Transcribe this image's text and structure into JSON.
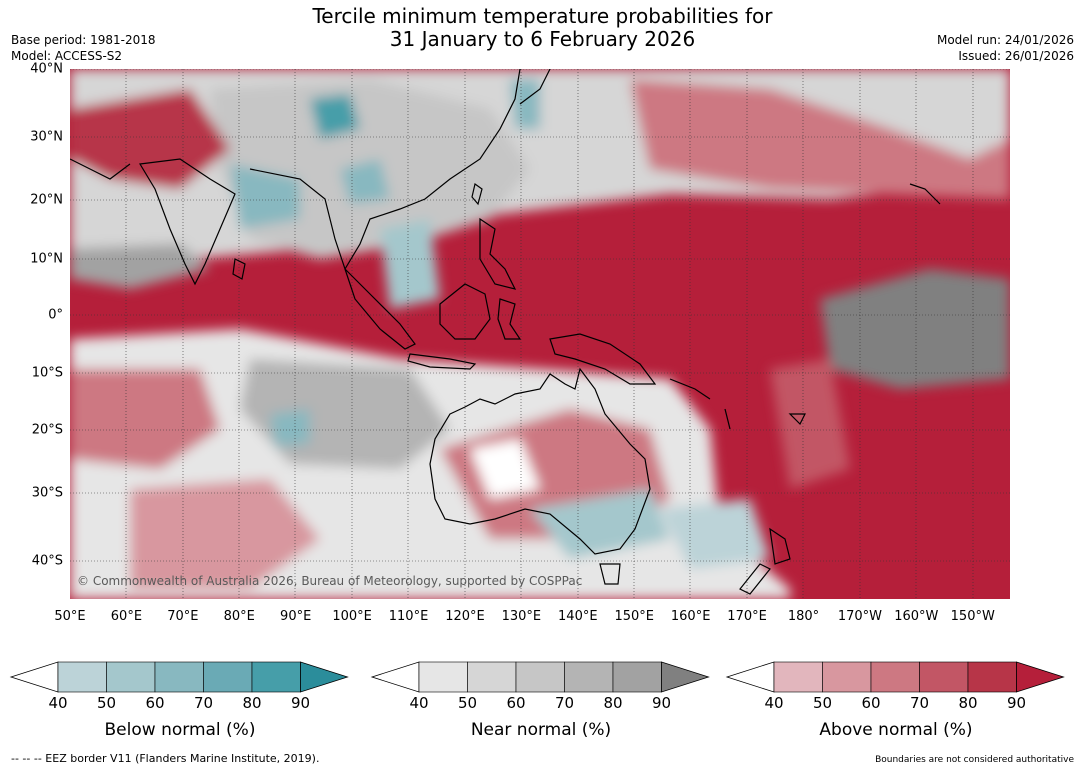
{
  "title_line1": "Tercile minimum temperature probabilities for",
  "title_line2": "31 January to 6 February 2026",
  "base_period": "Base period: 1981-2018",
  "model": "Model: ACCESS-S2",
  "model_run": "Model run: 24/01/2026",
  "issued": "Issued: 26/01/2026",
  "lat_labels": [
    {
      "text": "40°N",
      "lat": 40
    },
    {
      "text": "30°N",
      "lat": 30
    },
    {
      "text": "20°N",
      "lat": 20
    },
    {
      "text": "10°N",
      "lat": 10
    },
    {
      "text": "0°",
      "lat": 0
    },
    {
      "text": "10°S",
      "lat": -10
    },
    {
      "text": "20°S",
      "lat": -20
    },
    {
      "text": "30°S",
      "lat": -30
    },
    {
      "text": "40°S",
      "lat": -40
    }
  ],
  "lon_labels": [
    {
      "text": "50°E",
      "lon": 50
    },
    {
      "text": "60°E",
      "lon": 60
    },
    {
      "text": "70°E",
      "lon": 70
    },
    {
      "text": "80°E",
      "lon": 80
    },
    {
      "text": "90°E",
      "lon": 90
    },
    {
      "text": "100°E",
      "lon": 100
    },
    {
      "text": "110°E",
      "lon": 110
    },
    {
      "text": "120°E",
      "lon": 120
    },
    {
      "text": "130°E",
      "lon": 130
    },
    {
      "text": "140°E",
      "lon": 140
    },
    {
      "text": "150°E",
      "lon": 150
    },
    {
      "text": "160°E",
      "lon": 160
    },
    {
      "text": "170°E",
      "lon": 170
    },
    {
      "text": "180°",
      "lon": 180
    },
    {
      "text": "170°W",
      "lon": 190
    },
    {
      "text": "160°W",
      "lon": 200
    },
    {
      "text": "150°W",
      "lon": 210
    }
  ],
  "credit": "© Commonwealth of Australia 2026, Bureau of Meteorology, supported by COSPPac",
  "legends": [
    {
      "title": "Below normal (%)",
      "ticks": [
        "40",
        "50",
        "60",
        "70",
        "80",
        "90"
      ],
      "colors": [
        "#ffffff",
        "#bcd3d8",
        "#a4c7cc",
        "#88b8c0",
        "#6aaab5",
        "#469ea9",
        "#2b8d9b"
      ]
    },
    {
      "title": "Near normal (%)",
      "ticks": [
        "40",
        "50",
        "60",
        "70",
        "80",
        "90"
      ],
      "colors": [
        "#ffffff",
        "#e6e6e6",
        "#d6d6d6",
        "#c6c6c6",
        "#b4b4b4",
        "#a2a2a2",
        "#808080"
      ]
    },
    {
      "title": "Above normal (%)",
      "ticks": [
        "40",
        "50",
        "60",
        "70",
        "80",
        "90"
      ],
      "colors": [
        "#ffffff",
        "#e2b6bd",
        "#d8979f",
        "#cd7882",
        "#c25665",
        "#b73548",
        "#b51f3a"
      ]
    }
  ],
  "eez_note": "--  --  -- EEZ border V11 (Flanders Marine Institute, 2019).",
  "boundaries_note": "Boundaries are not considered authoritative"
}
